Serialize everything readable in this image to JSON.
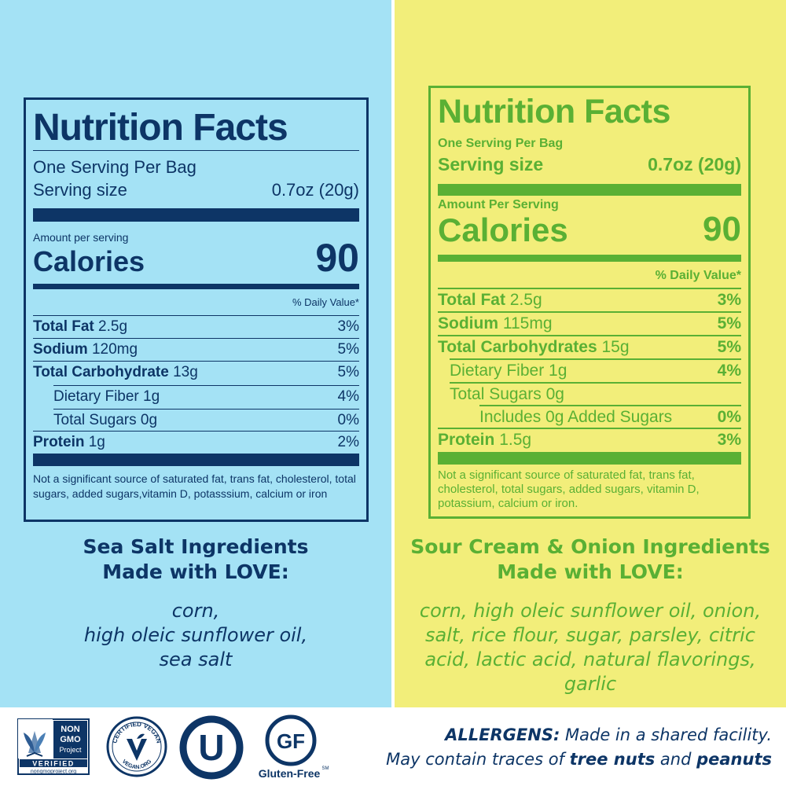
{
  "left_label": {
    "title": "Nutrition Facts",
    "servings": "One Serving Per Bag",
    "serving_size_label": "Serving size",
    "serving_size_value": "0.7oz (20g)",
    "amount_per_serving": "Amount per serving",
    "calories_label": "Calories",
    "calories_value": "90",
    "daily_value_header": "% Daily Value*",
    "rows": [
      {
        "name": "Total Fat",
        "amount": "2.5g",
        "pct": "3%"
      },
      {
        "name": "Sodium",
        "amount": "120mg",
        "pct": "5%"
      },
      {
        "name": "Total Carbohydrate",
        "amount": "13g",
        "pct": "5%"
      },
      {
        "name": "Dietary Fiber",
        "amount": "1g",
        "pct": "4%"
      },
      {
        "name": "Total Sugars",
        "amount": "0g",
        "pct": "0%"
      },
      {
        "name": "Protein",
        "amount": "1g",
        "pct": "2%"
      }
    ],
    "footnote": "Not a significant source of saturated fat, trans fat, cholesterol, total sugars, added sugars,vitamin D, potasssium, calcium or iron"
  },
  "right_label": {
    "title": "Nutrition Facts",
    "servings": "One Serving Per Bag",
    "serving_size_label": "Serving size",
    "serving_size_value": "0.7oz (20g)",
    "amount_per_serving": "Amount Per Serving",
    "calories_label": "Calories",
    "calories_value": "90",
    "daily_value_header": "% Daily Value*",
    "rows": [
      {
        "name": "Total Fat",
        "amount": "2.5g",
        "pct": "3%"
      },
      {
        "name": "Sodium",
        "amount": "115mg",
        "pct": "5%"
      },
      {
        "name": "Total Carbohydrates",
        "amount": "15g",
        "pct": "5%"
      },
      {
        "name": "Dietary Fiber",
        "amount": "1g",
        "pct": "4%"
      },
      {
        "name": "Total Sugars",
        "amount": "0g",
        "pct": ""
      },
      {
        "name": "Includes 0g Added Sugars",
        "amount": "",
        "pct": "0%"
      },
      {
        "name": "Protein",
        "amount": "1.5g",
        "pct": "3%"
      }
    ],
    "footnote": "Not a significant source of saturated fat, trans fat, cholesterol, total sugars, added sugars, vitamin D, potassium, calcium or iron."
  },
  "left_ingredients": {
    "heading_line1": "Sea Salt Ingredients",
    "heading_line2": "Made with LOVE:",
    "lines": [
      "corn,",
      "high oleic sunflower oil,",
      "sea salt"
    ]
  },
  "right_ingredients": {
    "heading_line1": "Sour Cream & Onion Ingredients",
    "heading_line2": "Made with LOVE:",
    "lines": [
      "corn, high oleic sunflower oil, onion,",
      "salt, rice flour, sugar, parsley, citric",
      "acid, lactic acid, natural flavorings,",
      "garlic"
    ]
  },
  "badges": {
    "non_gmo": {
      "line1": "NON",
      "line2": "GMO",
      "line3": "Project",
      "verified": "VERIFIED",
      "url": "nongmoproject.org"
    },
    "vegan": {
      "top": "CERTIFIED VEGAN",
      "bottom": "VEGAN.ORG"
    },
    "kosher": {
      "letter": "U"
    },
    "gluten_free": {
      "mark": "GF",
      "label": "Gluten-Free",
      "tm": "SM"
    }
  },
  "allergens": {
    "label": "ALLERGENS:",
    "line1_rest": " Made in a shared facility.",
    "line2_start": "May contain traces of ",
    "item1": "tree nuts",
    "and": " and ",
    "item2": "peanuts"
  },
  "colors": {
    "left_bg": "#a4e2f5",
    "right_bg": "#f2ee7a",
    "navy": "#0d3566",
    "green": "#5ab034"
  }
}
